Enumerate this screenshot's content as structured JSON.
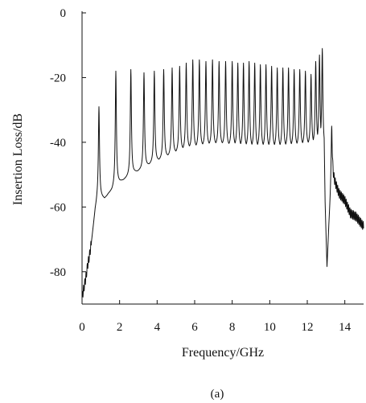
{
  "chart_data": {
    "type": "line",
    "caption": "(a)",
    "xlabel": "Frequency/GHz",
    "ylabel": "Insertion Loss/dB",
    "xlim": [
      0,
      15
    ],
    "ylim": [
      -90,
      0
    ],
    "xticks": [
      0,
      2,
      4,
      6,
      8,
      10,
      12,
      14
    ],
    "yticks": [
      0,
      -20,
      -40,
      -60,
      -80
    ],
    "grid": false,
    "legend": "none",
    "line_color": "#111111",
    "series": [
      {
        "baseline": [
          [
            0.0,
            -88
          ],
          [
            0.1,
            -85
          ],
          [
            0.2,
            -82
          ],
          [
            0.3,
            -78
          ],
          [
            0.4,
            -75
          ],
          [
            0.5,
            -71
          ],
          [
            0.6,
            -66
          ],
          [
            0.7,
            -61
          ],
          [
            0.8,
            -58
          ],
          [
            0.9,
            -56
          ],
          [
            1.0,
            -57
          ],
          [
            1.2,
            -57.5
          ],
          [
            1.4,
            -56
          ],
          [
            1.6,
            -55
          ],
          [
            1.8,
            -53
          ],
          [
            2.0,
            -52.5
          ],
          [
            2.4,
            -51
          ],
          [
            2.8,
            -49.5
          ],
          [
            3.2,
            -48.5
          ],
          [
            3.6,
            -47
          ],
          [
            4.0,
            -46
          ],
          [
            4.4,
            -45
          ],
          [
            4.8,
            -44
          ],
          [
            5.2,
            -43
          ],
          [
            5.6,
            -42.3
          ],
          [
            6.0,
            -42
          ],
          [
            6.5,
            -41.5
          ],
          [
            7.0,
            -41.2
          ],
          [
            7.5,
            -41.2
          ],
          [
            8.0,
            -41.5
          ],
          [
            8.5,
            -41.8
          ],
          [
            9.0,
            -42
          ],
          [
            9.5,
            -42
          ],
          [
            10.0,
            -42
          ],
          [
            10.5,
            -42
          ],
          [
            11.0,
            -41.8
          ],
          [
            11.5,
            -41.5
          ],
          [
            12.0,
            -41.2
          ],
          [
            12.3,
            -41
          ],
          [
            12.6,
            -40.5
          ],
          [
            12.9,
            -42
          ],
          [
            12.95,
            -60
          ],
          [
            13.05,
            -79
          ],
          [
            13.15,
            -66
          ],
          [
            13.3,
            -50
          ],
          [
            13.5,
            -53
          ],
          [
            13.7,
            -56
          ],
          [
            14.0,
            -58
          ],
          [
            14.3,
            -62
          ],
          [
            14.6,
            -63
          ],
          [
            15.0,
            -66
          ]
        ],
        "peaks": [
          [
            0.9,
            -29
          ],
          [
            1.8,
            -18
          ],
          [
            2.6,
            -17.5
          ],
          [
            3.3,
            -18.5
          ],
          [
            3.85,
            -18
          ],
          [
            4.35,
            -17.5
          ],
          [
            4.8,
            -17
          ],
          [
            5.2,
            -16.5
          ],
          [
            5.55,
            -15.5
          ],
          [
            5.9,
            -14.5
          ],
          [
            6.25,
            -14.5
          ],
          [
            6.6,
            -15
          ],
          [
            6.95,
            -14.5
          ],
          [
            7.3,
            -15
          ],
          [
            7.65,
            -15
          ],
          [
            8.0,
            -15
          ],
          [
            8.3,
            -15.5
          ],
          [
            8.6,
            -15.5
          ],
          [
            8.9,
            -15
          ],
          [
            9.2,
            -15.5
          ],
          [
            9.5,
            -16
          ],
          [
            9.8,
            -16
          ],
          [
            10.1,
            -16.5
          ],
          [
            10.4,
            -17
          ],
          [
            10.7,
            -17
          ],
          [
            11.0,
            -17
          ],
          [
            11.3,
            -17.5
          ],
          [
            11.6,
            -17.5
          ],
          [
            11.9,
            -18
          ],
          [
            12.2,
            -19
          ],
          [
            12.45,
            -15
          ],
          [
            12.65,
            -13
          ],
          [
            12.8,
            -11
          ],
          [
            13.3,
            -35
          ]
        ]
      }
    ]
  }
}
